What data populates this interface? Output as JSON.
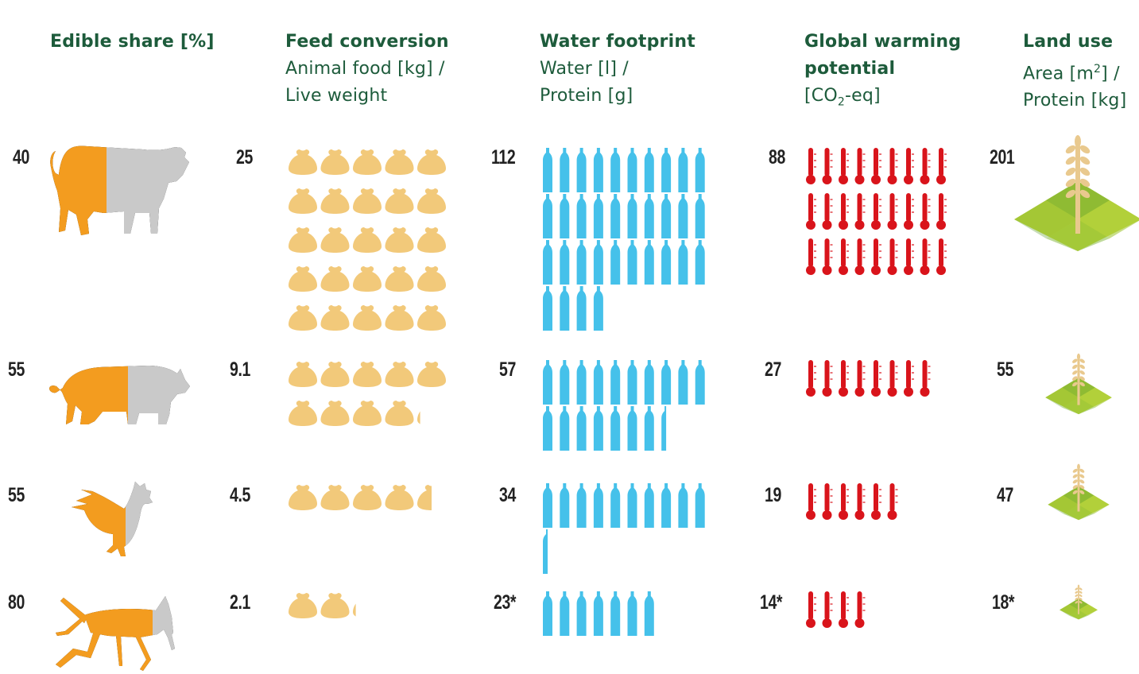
{
  "headers": {
    "edible": {
      "title": "Edible share [%]"
    },
    "feed": {
      "title": "Feed conversion",
      "line1": "Animal food [kg] /",
      "line2": "Live weight"
    },
    "water": {
      "title": "Water footprint",
      "line1": "Water [l] /",
      "line2": "Protein [g]"
    },
    "gwp": {
      "title1": "Global warming",
      "title2": "potential",
      "line_pre": "[CO",
      "line_sub": "2",
      "line_post": "-eq]"
    },
    "land": {
      "title": "Land use",
      "line1_pre": "Area [m",
      "line1_sup": "2",
      "line1_post": "] /",
      "line2": "Protein [kg]"
    }
  },
  "colors": {
    "header": "#1d5b3b",
    "edible": "#f39c1f",
    "inedible": "#c9c9c9",
    "feed": "#f2c97a",
    "water": "#45c1ea",
    "gwp": "#d9141b",
    "land_light": "#c9dd3a",
    "land_dark": "#5e9e2e",
    "wheat": "#e9c98e"
  },
  "icons": {
    "feed": "feed-sack-icon",
    "water": "water-bottle-icon",
    "gwp": "thermometer-icon",
    "land": "wheat-field-icon"
  },
  "chart_data": {
    "type": "table",
    "columns": [
      "Edible share [%]",
      "Feed conversion",
      "Water footprint",
      "Global warming potential",
      "Land use"
    ],
    "rows": [
      {
        "animal": "cattle",
        "edible": "40",
        "feed": "25",
        "water": "112",
        "gwp": "88",
        "land": "201",
        "edible_value": 40,
        "feed_value": 25,
        "water_value": 112,
        "gwp_value": 88,
        "land_value": 201
      },
      {
        "animal": "pig",
        "edible": "55",
        "feed": "9.1",
        "water": "57",
        "gwp": "27",
        "land": "55",
        "edible_value": 55,
        "feed_value": 9.1,
        "water_value": 57,
        "gwp_value": 27,
        "land_value": 55
      },
      {
        "animal": "chicken",
        "edible": "55",
        "feed": "4.5",
        "water": "34",
        "gwp": "19",
        "land": "47",
        "edible_value": 55,
        "feed_value": 4.5,
        "water_value": 34,
        "gwp_value": 19,
        "land_value": 47
      },
      {
        "animal": "cricket",
        "edible": "80",
        "feed": "2.1",
        "water": "23*",
        "gwp": "14*",
        "land": "18*",
        "edible_value": 80,
        "feed_value": 2.1,
        "water_value": 23,
        "gwp_value": 14,
        "land_value": 18
      }
    ]
  }
}
